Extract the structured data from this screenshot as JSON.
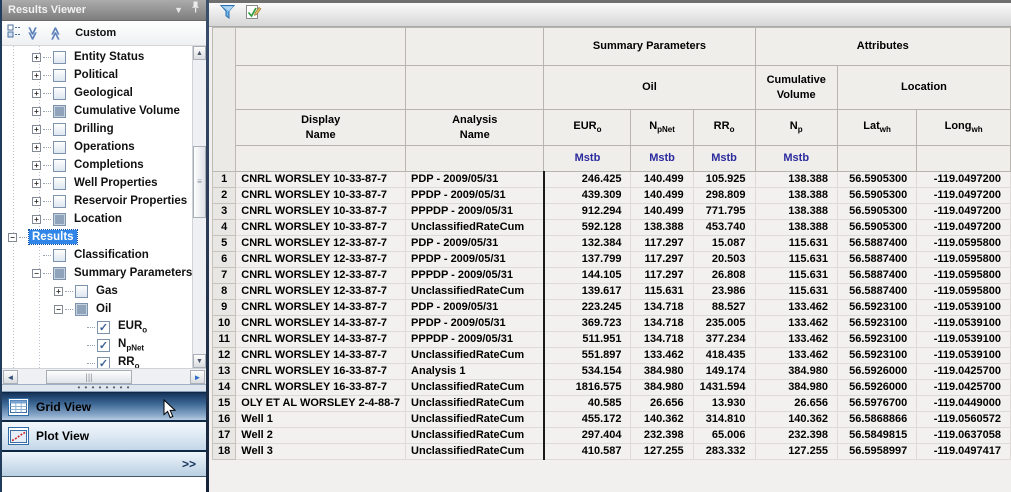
{
  "panel": {
    "title": "Results Viewer",
    "title_icons": [
      "chevron-down-icon",
      "pin-icon"
    ],
    "toolbar": {
      "icons": [
        "checkbox-list-icon",
        "collapse-all-icon",
        "expand-all-icon"
      ],
      "preset": "Custom"
    },
    "tree": [
      {
        "label": "Entity Status",
        "level": 1,
        "exp": "plus",
        "check": "unchecked"
      },
      {
        "label": "Political",
        "level": 1,
        "exp": "plus",
        "check": "unchecked"
      },
      {
        "label": "Geological",
        "level": 1,
        "exp": "plus",
        "check": "unchecked"
      },
      {
        "label": "Cumulative Volume",
        "level": 1,
        "exp": "plus",
        "check": "partial"
      },
      {
        "label": "Drilling",
        "level": 1,
        "exp": "plus",
        "check": "unchecked"
      },
      {
        "label": "Operations",
        "level": 1,
        "exp": "plus",
        "check": "unchecked"
      },
      {
        "label": "Completions",
        "level": 1,
        "exp": "plus",
        "check": "unchecked"
      },
      {
        "label": "Well Properties",
        "level": 1,
        "exp": "plus",
        "check": "unchecked"
      },
      {
        "label": "Reservoir Properties",
        "level": 1,
        "exp": "plus",
        "check": "unchecked"
      },
      {
        "label": "Location",
        "level": 1,
        "exp": "plus",
        "check": "partial"
      },
      {
        "label": "Results",
        "level": 0,
        "exp": "minus",
        "check": "none",
        "selected": true
      },
      {
        "label": "Classification",
        "level": 1,
        "exp": "none",
        "check": "unchecked"
      },
      {
        "label": "Summary Parameters",
        "level": 1,
        "exp": "minus",
        "check": "partial"
      },
      {
        "label": "Gas",
        "level": 2,
        "exp": "plus",
        "check": "unchecked"
      },
      {
        "label": "Oil",
        "level": 2,
        "exp": "minus",
        "check": "partial"
      },
      {
        "label": "EUR",
        "sub": "o",
        "level": 3,
        "exp": "none",
        "check": "checked"
      },
      {
        "label": "N",
        "sub": "pNet",
        "level": 3,
        "exp": "none",
        "check": "checked"
      },
      {
        "label": "RR",
        "sub": "o",
        "level": 3,
        "exp": "none",
        "check": "checked"
      }
    ],
    "views": [
      {
        "label": "Grid View",
        "icon": "grid-view-icon",
        "active": true
      },
      {
        "label": "Plot View",
        "icon": "plot-view-icon",
        "active": false
      }
    ],
    "more": ">>"
  },
  "main": {
    "toolbar_icons": [
      "filter-icon",
      "edit-list-icon"
    ],
    "grid": {
      "groups": [
        {
          "label": "Summary Parameters",
          "span": 3
        },
        {
          "label": "Attributes",
          "span": 3
        }
      ],
      "subgroups": [
        {
          "label": "Oil",
          "span": 3
        },
        {
          "label": "Cumulative Volume",
          "span": 1
        },
        {
          "label": "Location",
          "span": 2
        }
      ],
      "columns": [
        {
          "label": "Display\nName"
        },
        {
          "label": "Analysis\nName"
        },
        {
          "label": "EUR",
          "sub": "o"
        },
        {
          "label": "N",
          "sub": "pNet"
        },
        {
          "label": "RR",
          "sub": "o"
        },
        {
          "label": "N",
          "sub": "p"
        },
        {
          "label": "Lat",
          "sub": "wh"
        },
        {
          "label": "Long",
          "sub": "wh"
        }
      ],
      "units": [
        "",
        "",
        "Mstb",
        "Mstb",
        "Mstb",
        "Mstb",
        "",
        ""
      ],
      "rows": [
        [
          "1",
          "CNRL WORSLEY 10-33-87-7",
          "PDP - 2009/05/31",
          "246.425",
          "140.499",
          "105.925",
          "138.388",
          "56.5905300",
          "-119.0497200"
        ],
        [
          "2",
          "CNRL WORSLEY 10-33-87-7",
          "PPDP - 2009/05/31",
          "439.309",
          "140.499",
          "298.809",
          "138.388",
          "56.5905300",
          "-119.0497200"
        ],
        [
          "3",
          "CNRL WORSLEY 10-33-87-7",
          "PPPDP - 2009/05/31",
          "912.294",
          "140.499",
          "771.795",
          "138.388",
          "56.5905300",
          "-119.0497200"
        ],
        [
          "4",
          "CNRL WORSLEY 10-33-87-7",
          "UnclassifiedRateCum",
          "592.128",
          "138.388",
          "453.740",
          "138.388",
          "56.5905300",
          "-119.0497200"
        ],
        [
          "5",
          "CNRL WORSLEY 12-33-87-7",
          "PDP - 2009/05/31",
          "132.384",
          "117.297",
          "15.087",
          "115.631",
          "56.5887400",
          "-119.0595800"
        ],
        [
          "6",
          "CNRL WORSLEY 12-33-87-7",
          "PPDP - 2009/05/31",
          "137.799",
          "117.297",
          "20.503",
          "115.631",
          "56.5887400",
          "-119.0595800"
        ],
        [
          "7",
          "CNRL WORSLEY 12-33-87-7",
          "PPPDP - 2009/05/31",
          "144.105",
          "117.297",
          "26.808",
          "115.631",
          "56.5887400",
          "-119.0595800"
        ],
        [
          "8",
          "CNRL WORSLEY 12-33-87-7",
          "UnclassifiedRateCum",
          "139.617",
          "115.631",
          "23.986",
          "115.631",
          "56.5887400",
          "-119.0595800"
        ],
        [
          "9",
          "CNRL WORSLEY 14-33-87-7",
          "PDP - 2009/05/31",
          "223.245",
          "134.718",
          "88.527",
          "133.462",
          "56.5923100",
          "-119.0539100"
        ],
        [
          "10",
          "CNRL WORSLEY 14-33-87-7",
          "PPDP - 2009/05/31",
          "369.723",
          "134.718",
          "235.005",
          "133.462",
          "56.5923100",
          "-119.0539100"
        ],
        [
          "11",
          "CNRL WORSLEY 14-33-87-7",
          "PPPDP - 2009/05/31",
          "511.951",
          "134.718",
          "377.234",
          "133.462",
          "56.5923100",
          "-119.0539100"
        ],
        [
          "12",
          "CNRL WORSLEY 14-33-87-7",
          "UnclassifiedRateCum",
          "551.897",
          "133.462",
          "418.435",
          "133.462",
          "56.5923100",
          "-119.0539100"
        ],
        [
          "13",
          "CNRL WORSLEY 16-33-87-7",
          "Analysis 1",
          "534.154",
          "384.980",
          "149.174",
          "384.980",
          "56.5926000",
          "-119.0425700"
        ],
        [
          "14",
          "CNRL WORSLEY 16-33-87-7",
          "UnclassifiedRateCum",
          "1816.575",
          "384.980",
          "1431.594",
          "384.980",
          "56.5926000",
          "-119.0425700"
        ],
        [
          "15",
          "OLY ET AL WORSLEY 2-4-88-7",
          "UnclassifiedRateCum",
          "40.585",
          "26.656",
          "13.930",
          "26.656",
          "56.5976700",
          "-119.0449000"
        ],
        [
          "16",
          "Well 1",
          "UnclassifiedRateCum",
          "455.172",
          "140.362",
          "314.810",
          "140.362",
          "56.5868866",
          "-119.0560572"
        ],
        [
          "17",
          "Well 2",
          "UnclassifiedRateCum",
          "297.404",
          "232.398",
          "65.006",
          "232.398",
          "56.5849815",
          "-119.0637058"
        ],
        [
          "18",
          "Well 3",
          "UnclassifiedRateCum",
          "410.587",
          "127.255",
          "283.332",
          "127.255",
          "56.5958997",
          "-119.0497417"
        ]
      ]
    }
  },
  "colors": {
    "selection_blue": "#2f86e8",
    "units_navy": "#2b2b9e",
    "gridview_navy": "#14335b",
    "filter_blue": "#4f9ad8"
  }
}
